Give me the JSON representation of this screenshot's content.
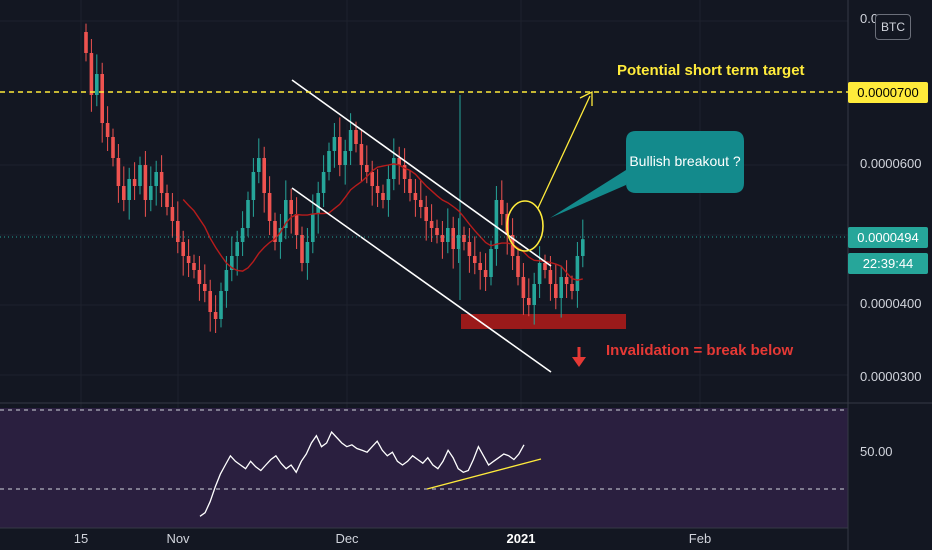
{
  "chart_data": {
    "type": "candlestick",
    "symbol_badge": "BTC",
    "x_ticks": [
      "15",
      "Nov",
      "Dec",
      "2021",
      "Feb"
    ],
    "y_ticks": [
      "0.0000600",
      "0.0000400",
      "0.0000300"
    ],
    "y_ticks_partial_top": "0.0",
    "y_range": [
      2.63e-05,
      7.55e-05
    ],
    "last_price": "0.0000494",
    "countdown": "22:39:44",
    "target_price_label": "0.0000700",
    "target_level": 7e-05,
    "annotations": {
      "target_text": "Potential short term target",
      "callout_text": "Bullish breakout ?",
      "invalidation_text": "Invalidation = break below"
    },
    "rsi": {
      "tick_label": "50.00",
      "range": [
        20,
        80
      ],
      "upper_band": 70,
      "lower_band": 30
    },
    "colors": {
      "background": "#131722",
      "up_candle": "#26a69a",
      "down_candle": "#ef5350",
      "ma_line": "#b71c1c",
      "target_line": "#ffeb3b",
      "channel": "#ffffff",
      "callout": "#138a8c",
      "invalidation_zone": "#9b1a1a",
      "invalidation_text": "#e53935",
      "rsi_panel": "#2a1f3f"
    }
  }
}
